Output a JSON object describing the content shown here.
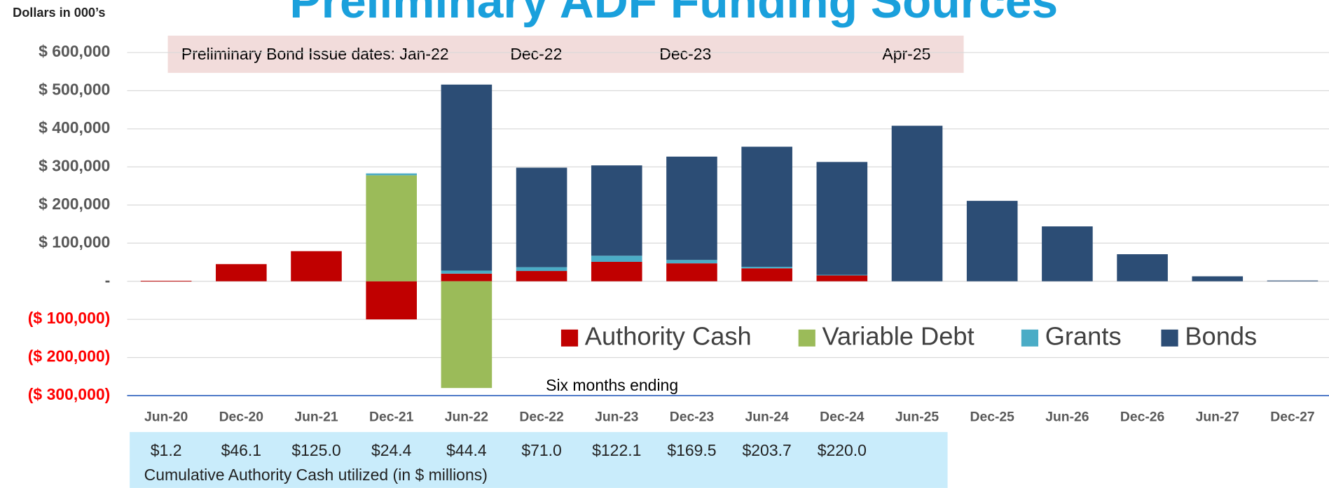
{
  "chart_data": {
    "type": "bar",
    "stacked": true,
    "title": "Preliminary ADF Funding Sources",
    "y_axis_label": "Dollars in 000’s",
    "x_axis_label": "Six months ending",
    "categories": [
      "Jun-20",
      "Dec-20",
      "Jun-21",
      "Dec-21",
      "Jun-22",
      "Dec-22",
      "Jun-23",
      "Dec-23",
      "Jun-24",
      "Dec-24",
      "Jun-25",
      "Dec-25",
      "Jun-26",
      "Dec-26",
      "Jun-27",
      "Dec-27"
    ],
    "series": [
      {
        "name": "Authority Cash",
        "color": "#c00000",
        "values": [
          1200,
          45000,
          79000,
          -100000,
          20000,
          27000,
          51000,
          47000,
          34000,
          16000,
          0,
          0,
          0,
          0,
          0,
          0
        ]
      },
      {
        "name": "Variable Debt",
        "color": "#9bbb59",
        "values": [
          0,
          0,
          0,
          278000,
          -280000,
          0,
          0,
          0,
          0,
          0,
          0,
          0,
          0,
          0,
          0,
          0
        ]
      },
      {
        "name": "Grants",
        "color": "#4bacc6",
        "values": [
          0,
          0,
          0,
          5000,
          8000,
          10000,
          16000,
          9000,
          4000,
          1000,
          0,
          0,
          0,
          0,
          0,
          0
        ]
      },
      {
        "name": "Bonds",
        "color": "#2c4d75",
        "values": [
          0,
          0,
          0,
          0,
          488000,
          261000,
          237000,
          271000,
          315000,
          296000,
          408000,
          211000,
          144000,
          71000,
          13000,
          2000
        ]
      }
    ],
    "ylim": [
      -300000,
      650000
    ],
    "yticks": [
      {
        "value": -300000,
        "label": "($ 300,000)"
      },
      {
        "value": -200000,
        "label": "($ 200,000)"
      },
      {
        "value": -100000,
        "label": "($ 100,000)"
      },
      {
        "value": 0,
        "label": "-"
      },
      {
        "value": 100000,
        "label": "$ 100,000"
      },
      {
        "value": 200000,
        "label": "$ 200,000"
      },
      {
        "value": 300000,
        "label": "$ 300,000"
      },
      {
        "value": 400000,
        "label": "$ 400,000"
      },
      {
        "value": 500000,
        "label": "$ 500,000"
      },
      {
        "value": 600000,
        "label": "$ 600,000"
      }
    ],
    "negative_tick_color": "#ff0000",
    "grid": true,
    "legend": "right",
    "annotations": {
      "bond_dates_label": "Preliminary Bond Issue dates: Jan-22",
      "bond_dates": [
        "Dec-22",
        "Dec-23",
        "Apr-25"
      ]
    },
    "cumulative_cash": {
      "labels": [
        "$1.2",
        "$46.1",
        "$125.0",
        "$24.4",
        "$44.4",
        "$71.0",
        "$122.1",
        "$169.5",
        "$203.7",
        "$220.0"
      ],
      "caption": "Cumulative Authority Cash utilized (in $ millions)"
    }
  }
}
